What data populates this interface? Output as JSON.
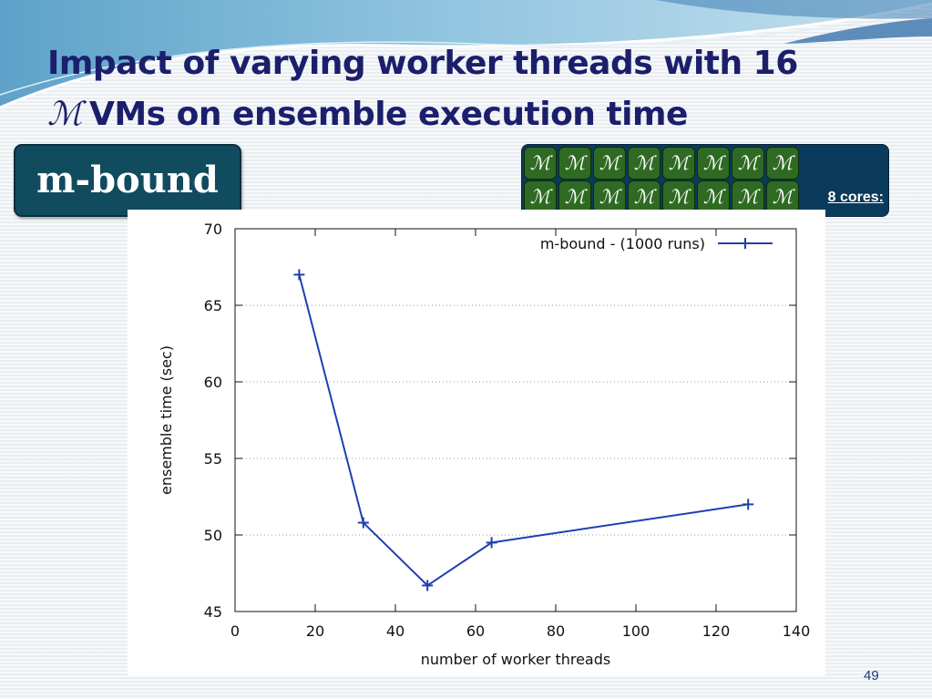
{
  "slide": {
    "title_line1": "Impact of varying worker threads with 16",
    "title_glyph": "ℳ",
    "title_line2": "VMs on ensemble execution time",
    "badge": "m-bound",
    "vm_glyph": "ℳ",
    "cores_label": "8 cores:",
    "page_number": "49"
  },
  "colors": {
    "title": "#1b1f6b",
    "badge_bg": "#114b5e",
    "vm_panel_bg": "#0a3a5c",
    "vm_box": "#2f6a23",
    "series_line": "#1f3fb0"
  },
  "chart_data": {
    "type": "line",
    "xlabel": "number of worker threads",
    "ylabel": "ensemble time (sec)",
    "xlim": [
      0,
      140
    ],
    "ylim": [
      45,
      70
    ],
    "x_ticks": [
      0,
      20,
      40,
      60,
      80,
      100,
      120,
      140
    ],
    "y_ticks": [
      45,
      50,
      55,
      60,
      65,
      70
    ],
    "grid": true,
    "legend_position": "top-right",
    "series": [
      {
        "name": "m-bound - (1000 runs)",
        "marker": "plus",
        "x": [
          16,
          32,
          48,
          64,
          128
        ],
        "y": [
          67.0,
          50.8,
          46.7,
          49.5,
          52.0
        ]
      }
    ]
  }
}
